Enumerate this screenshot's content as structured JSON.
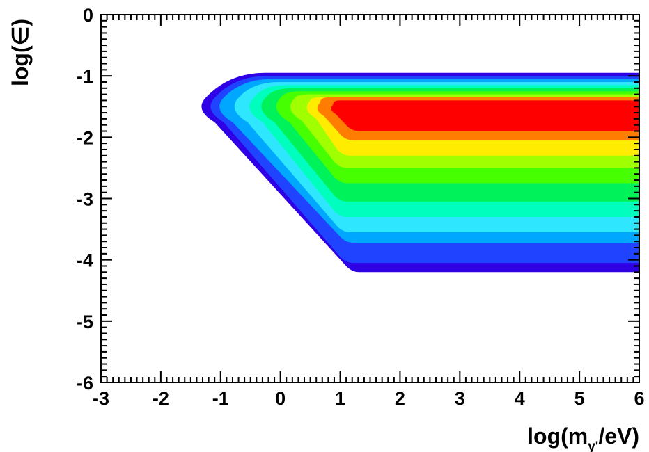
{
  "chart_data": {
    "type": "heatmap",
    "title": "",
    "xlabel": {
      "prefix": "log(m",
      "subscript": "γ'",
      "suffix": "/eV)"
    },
    "ylabel": "log(∈)",
    "xlim": [
      -3,
      6
    ],
    "ylim": [
      -6,
      0
    ],
    "x_ticks": [
      -3,
      -2,
      -1,
      0,
      1,
      2,
      3,
      4,
      5,
      6
    ],
    "y_ticks": [
      0,
      -1,
      -2,
      -3,
      -4,
      -5,
      -6
    ],
    "x_tick_labels": [
      "-3",
      "-2",
      "-1",
      "0",
      "1",
      "2",
      "3",
      "4",
      "5",
      "6"
    ],
    "y_tick_labels": [
      "0",
      "-1",
      "-2",
      "-3",
      "-4",
      "-5",
      "-6"
    ],
    "grid": false,
    "legend": "none",
    "contour_levels": [
      {
        "color": "#2f00e6",
        "x": [
          -1.45,
          6.0
        ],
        "y_top": -0.95,
        "y_bottom": -4.2,
        "x_knee": 1.2
      },
      {
        "color": "#1f43ff",
        "x": [
          -1.3,
          6.0
        ],
        "y_top": -1.0,
        "y_bottom": -4.05,
        "x_knee": 1.1
      },
      {
        "color": "#00a7ff",
        "x": [
          -1.15,
          6.0
        ],
        "y_top": -1.05,
        "y_bottom": -3.72,
        "x_knee": 1.1
      },
      {
        "color": "#2fe6ff",
        "x": [
          -0.9,
          6.0
        ],
        "y_top": -1.1,
        "y_bottom": -3.55,
        "x_knee": 1.05
      },
      {
        "color": "#00ffbe",
        "x": [
          -0.65,
          6.0
        ],
        "y_top": -1.15,
        "y_bottom": -3.3,
        "x_knee": 1.0
      },
      {
        "color": "#00f25a",
        "x": [
          -0.45,
          6.0
        ],
        "y_top": -1.2,
        "y_bottom": -3.05,
        "x_knee": 1.0
      },
      {
        "color": "#46ff00",
        "x": [
          -0.2,
          6.0
        ],
        "y_top": -1.25,
        "y_bottom": -2.75,
        "x_knee": 1.0
      },
      {
        "color": "#a0ff00",
        "x": [
          0.05,
          6.0
        ],
        "y_top": -1.3,
        "y_bottom": -2.5,
        "x_knee": 1.0
      },
      {
        "color": "#ffec00",
        "x": [
          0.35,
          6.0
        ],
        "y_top": -1.35,
        "y_bottom": -2.3,
        "x_knee": 1.05
      },
      {
        "color": "#ff7d00",
        "x": [
          0.55,
          6.0
        ],
        "y_top": -1.35,
        "y_bottom": -2.05,
        "x_knee": 1.1
      },
      {
        "color": "#ff0000",
        "x": [
          0.8,
          6.0
        ],
        "y_top": -1.4,
        "y_bottom": -1.9,
        "x_knee": 1.2
      }
    ]
  }
}
